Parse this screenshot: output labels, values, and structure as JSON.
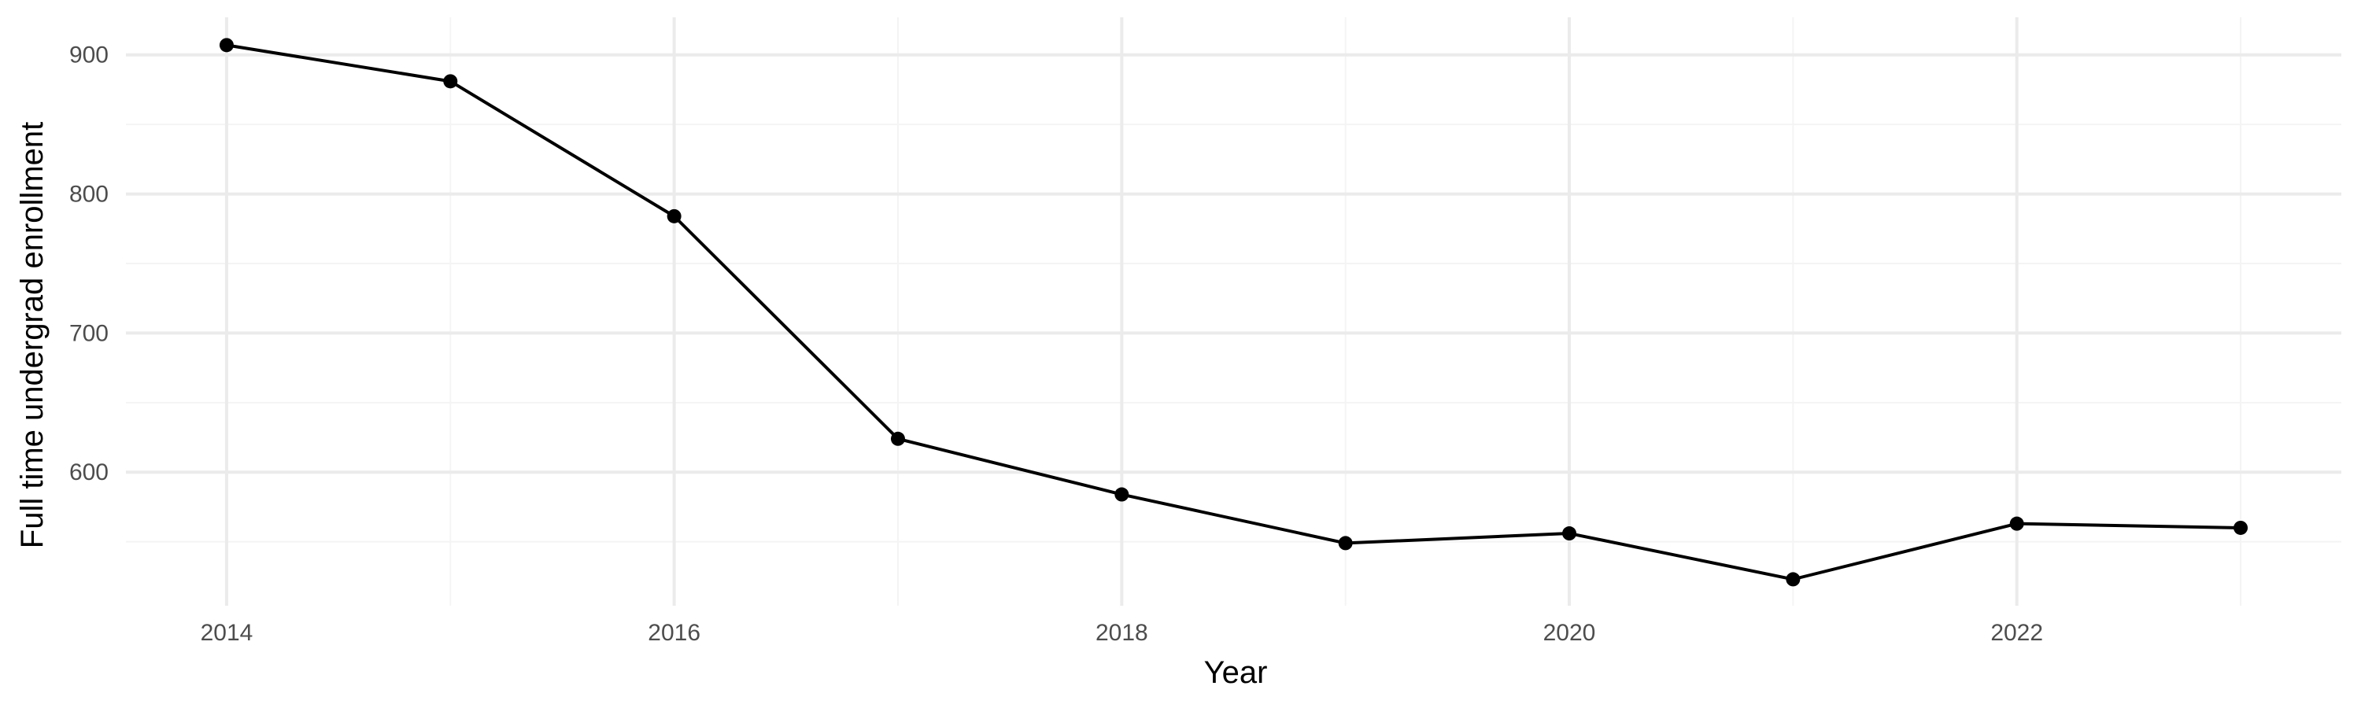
{
  "chart_data": {
    "type": "line",
    "title": "",
    "xlabel": "Year",
    "ylabel": "Full time undergrad enrollment",
    "x": [
      2014,
      2015,
      2016,
      2017,
      2018,
      2019,
      2020,
      2021,
      2022,
      2023
    ],
    "series": [
      {
        "values": [
          907,
          881,
          784,
          624,
          584,
          549,
          556,
          523,
          563,
          560
        ]
      }
    ],
    "xlim": [
      2013.55,
      2023.45
    ],
    "ylim": [
      504,
      927
    ],
    "x_ticks": [
      2014,
      2016,
      2018,
      2020,
      2022
    ],
    "x_tick_labels": [
      "2014",
      "2016",
      "2018",
      "2020",
      "2022"
    ],
    "x_minor_ticks": [
      2015,
      2017,
      2019,
      2021,
      2023
    ],
    "y_ticks": [
      600,
      700,
      800,
      900
    ],
    "y_tick_labels": [
      "600",
      "700",
      "800",
      "900"
    ],
    "y_minor_ticks": [
      550,
      650,
      750,
      850
    ],
    "grid": true,
    "legend": "none",
    "colors": {
      "line": "#000000",
      "point": "#000000",
      "grid_major": "#ebebeb",
      "grid_minor": "#f4f4f4",
      "tick_text": "#4d4d4d",
      "axis_title": "#000000"
    }
  }
}
